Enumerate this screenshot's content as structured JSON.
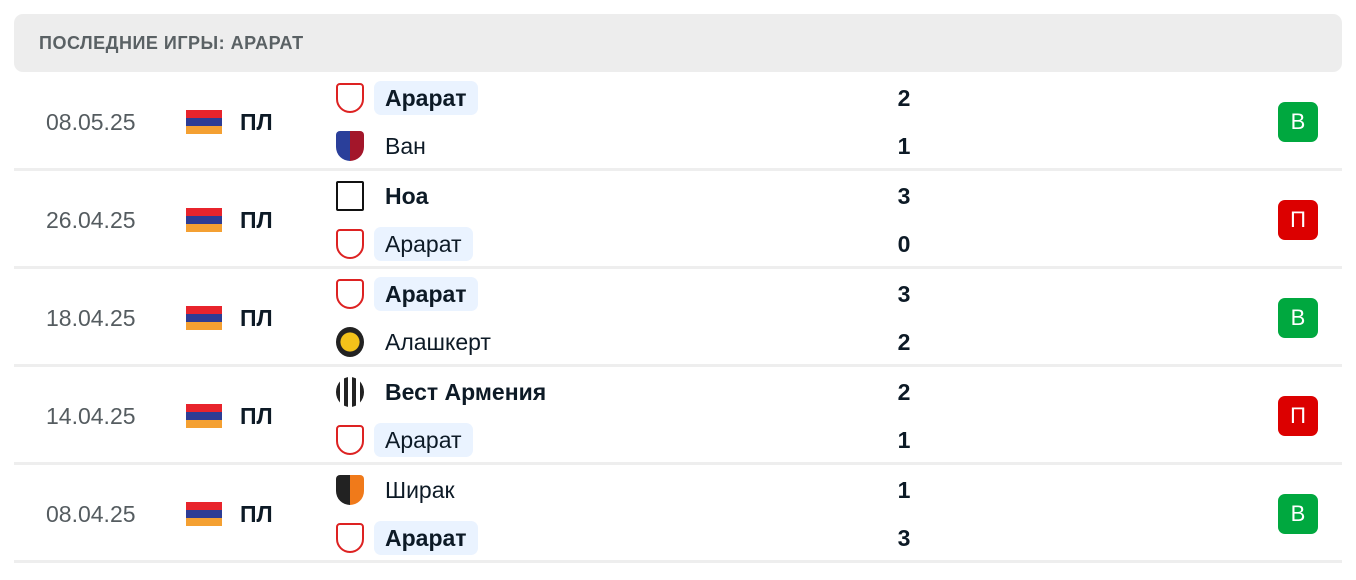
{
  "header": {
    "title": "ПОСЛЕДНИЕ ИГРЫ: АРАРАТ"
  },
  "colors": {
    "win": "#00a83f",
    "loss": "#dc0000",
    "highlight": "#eaf3ff"
  },
  "matches": [
    {
      "date": "08.05.25",
      "league": "ПЛ",
      "flag": "armenia-flag",
      "home": {
        "name": "Арарат",
        "score": "2",
        "logo": "ararat-logo",
        "highlight": true,
        "winner": true
      },
      "away": {
        "name": "Ван",
        "score": "1",
        "logo": "van-logo",
        "highlight": false,
        "winner": false
      },
      "result": "В",
      "result_type": "win"
    },
    {
      "date": "26.04.25",
      "league": "ПЛ",
      "flag": "armenia-flag",
      "home": {
        "name": "Ноа",
        "score": "3",
        "logo": "noah-logo",
        "highlight": false,
        "winner": true
      },
      "away": {
        "name": "Арарат",
        "score": "0",
        "logo": "ararat-logo",
        "highlight": true,
        "winner": false
      },
      "result": "П",
      "result_type": "loss"
    },
    {
      "date": "18.04.25",
      "league": "ПЛ",
      "flag": "armenia-flag",
      "home": {
        "name": "Арарат",
        "score": "3",
        "logo": "ararat-logo",
        "highlight": true,
        "winner": true
      },
      "away": {
        "name": "Алашкерт",
        "score": "2",
        "logo": "alashkert-logo",
        "highlight": false,
        "winner": false
      },
      "result": "В",
      "result_type": "win"
    },
    {
      "date": "14.04.25",
      "league": "ПЛ",
      "flag": "armenia-flag",
      "home": {
        "name": "Вест Армения",
        "score": "2",
        "logo": "west-armenia-logo",
        "highlight": false,
        "winner": true
      },
      "away": {
        "name": "Арарат",
        "score": "1",
        "logo": "ararat-logo",
        "highlight": true,
        "winner": false
      },
      "result": "П",
      "result_type": "loss"
    },
    {
      "date": "08.04.25",
      "league": "ПЛ",
      "flag": "armenia-flag",
      "home": {
        "name": "Ширак",
        "score": "1",
        "logo": "shirak-logo",
        "highlight": false,
        "winner": false
      },
      "away": {
        "name": "Арарат",
        "score": "3",
        "logo": "ararat-logo",
        "highlight": true,
        "winner": true
      },
      "result": "В",
      "result_type": "win"
    }
  ]
}
